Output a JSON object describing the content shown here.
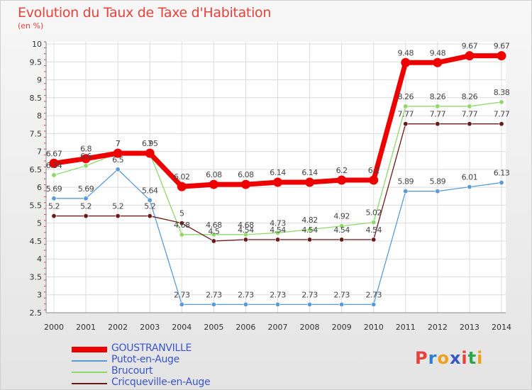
{
  "title": "Evolution du Taux de Taxe d'Habitation",
  "subtitle": "(en %)",
  "logo_text": "Proxiti",
  "chart_data": {
    "type": "line",
    "x": [
      "2000",
      "2001",
      "2002",
      "2003",
      "2004",
      "2005",
      "2006",
      "2007",
      "2008",
      "2009",
      "2010",
      "2011",
      "2012",
      "2013",
      "2014"
    ],
    "ylim": [
      2.5,
      10
    ],
    "yticks": [
      "2.5",
      "3",
      "3.5",
      "4",
      "4.5",
      "5",
      "5.5",
      "6",
      "6.5",
      "7",
      "7.5",
      "8",
      "8.5",
      "9",
      "9.5",
      "10"
    ],
    "grid": true,
    "legend_position": "bottom-left",
    "series": [
      {
        "name": "GOUSTRANVILLE",
        "color": "#ee0000",
        "values": [
          6.67,
          6.8,
          6.95,
          6.95,
          6.02,
          6.08,
          6.08,
          6.14,
          6.14,
          6.2,
          6.2,
          9.48,
          9.48,
          9.67,
          9.67
        ],
        "labels": [
          "6.67",
          "6.8",
          "7",
          "6.95",
          "6.02",
          "6.08",
          "6.08",
          "6.14",
          "6.14",
          "6.2",
          "6.2",
          "9.48",
          "9.48",
          "9.67",
          "9.67"
        ]
      },
      {
        "name": "Putot-en-Auge",
        "color": "#5b9bd5",
        "values": [
          5.69,
          5.69,
          6.5,
          5.64,
          2.73,
          2.73,
          2.73,
          2.73,
          2.73,
          2.73,
          2.73,
          5.89,
          5.89,
          6.01,
          6.13
        ],
        "labels": [
          "5.69",
          "5.69",
          "6.5",
          "5.64",
          "2.73",
          "2.73",
          "2.73",
          "2.73",
          "2.73",
          "2.73",
          "2.73",
          "5.89",
          "5.89",
          "6.01",
          "6.13"
        ]
      },
      {
        "name": "Brucourt",
        "color": "#8fd86a",
        "values": [
          6.34,
          6.6,
          6.95,
          6.95,
          4.68,
          4.68,
          4.68,
          4.73,
          4.82,
          4.92,
          5.02,
          8.26,
          8.26,
          8.26,
          8.38
        ],
        "labels": [
          "6.34",
          "6.6",
          "7",
          "7",
          "4.68",
          "4.68",
          "4.68",
          "4.73",
          "4.82",
          "4.92",
          "5.02",
          "8.26",
          "8.26",
          "8.26",
          "8.38"
        ]
      },
      {
        "name": "Cricqueville-en-Auge",
        "color": "#6b1a1a",
        "values": [
          5.2,
          5.2,
          5.2,
          5.2,
          5.0,
          4.5,
          4.54,
          4.54,
          4.54,
          4.54,
          4.54,
          7.77,
          7.77,
          7.77,
          7.77
        ],
        "labels": [
          "5.2",
          "5.2",
          "5.2",
          "5.2",
          "5",
          "4.5",
          "4.54",
          "4.54",
          "4.54",
          "4.54",
          "4.54",
          "7.77",
          "7.77",
          "7.77",
          "7.77"
        ]
      }
    ]
  }
}
